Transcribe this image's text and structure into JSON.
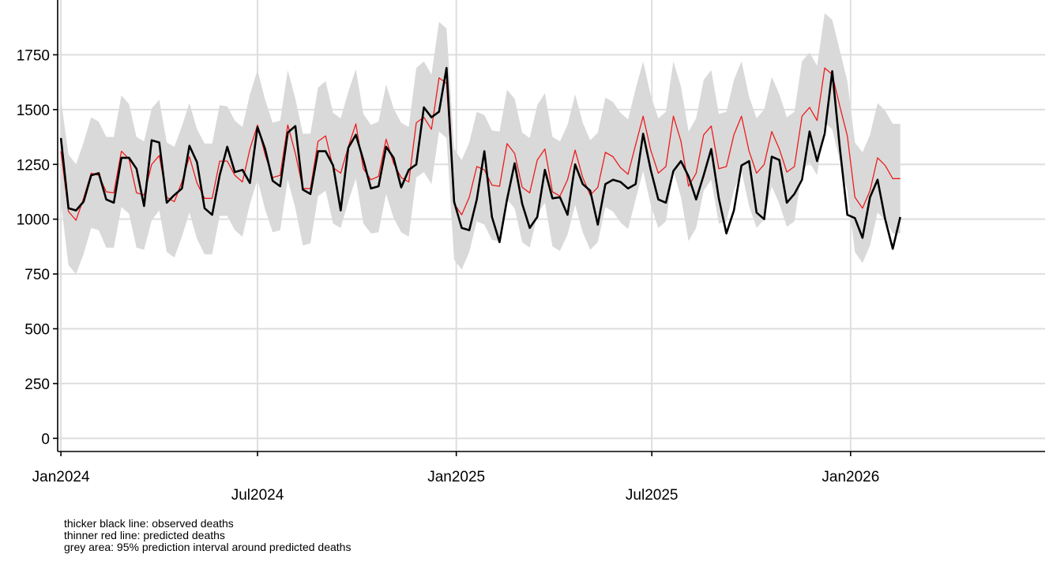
{
  "chart_data": {
    "type": "line",
    "title": "",
    "xlabel": "",
    "ylabel": "",
    "x_unit": "week",
    "x_start": "2024-01-01",
    "x_ticks": [
      {
        "label": "Jan2024",
        "date": "2024-01-01"
      },
      {
        "label": "Jul2024",
        "date": "2024-07-01"
      },
      {
        "label": "Jan2025",
        "date": "2025-01-01"
      },
      {
        "label": "Jul2025",
        "date": "2025-07-01"
      },
      {
        "label": "Jan2026",
        "date": "2026-01-01"
      }
    ],
    "x_range": [
      "2023-12-29",
      "2026-06-30"
    ],
    "y_ticks": [
      0,
      250,
      500,
      750,
      1000,
      1250,
      1500,
      1750
    ],
    "ylim": [
      -60,
      2000
    ],
    "grid": true,
    "legend": "none",
    "series": [
      {
        "color": "#000000",
        "values": [
          1370,
          1050,
          1040,
          1080,
          1200,
          1210,
          1090,
          1075,
          1280,
          1280,
          1230,
          1060,
          1360,
          1350,
          1075,
          1110,
          1140,
          1335,
          1260,
          1050,
          1020,
          1200,
          1330,
          1215,
          1225,
          1165,
          1420,
          1320,
          1175,
          1150,
          1395,
          1425,
          1135,
          1115,
          1310,
          1310,
          1245,
          1040,
          1325,
          1385,
          1270,
          1140,
          1150,
          1330,
          1280,
          1145,
          1225,
          1250,
          1510,
          1465,
          1490,
          1690,
          1080,
          960,
          950,
          1090,
          1310,
          1010,
          895,
          1090,
          1255,
          1070,
          960,
          1010,
          1225,
          1095,
          1100,
          1020,
          1250,
          1160,
          1130,
          975,
          1160,
          1180,
          1170,
          1140,
          1160,
          1390,
          1225,
          1090,
          1075,
          1220,
          1265,
          1195,
          1090,
          1200,
          1320,
          1095,
          935,
          1040,
          1245,
          1265,
          1030,
          1000,
          1285,
          1270,
          1075,
          1115,
          1180,
          1400,
          1265,
          1390,
          1675,
          1325,
          1020,
          1005,
          915,
          1100,
          1180,
          1000,
          865,
          1010
        ]
      },
      {
        "color": "#ee1c1c",
        "values": [
          1310,
          1035,
          995,
          1095,
          1210,
          1200,
          1125,
          1120,
          1310,
          1275,
          1120,
          1110,
          1250,
          1290,
          1100,
          1080,
          1170,
          1285,
          1165,
          1095,
          1095,
          1265,
          1265,
          1200,
          1170,
          1320,
          1430,
          1295,
          1190,
          1200,
          1430,
          1300,
          1140,
          1140,
          1355,
          1380,
          1235,
          1210,
          1330,
          1435,
          1230,
          1180,
          1195,
          1365,
          1255,
          1190,
          1170,
          1440,
          1465,
          1410,
          1645,
          1620,
          1070,
          1020,
          1100,
          1240,
          1225,
          1155,
          1150,
          1345,
          1300,
          1145,
          1120,
          1270,
          1320,
          1125,
          1105,
          1180,
          1315,
          1190,
          1110,
          1145,
          1305,
          1285,
          1235,
          1205,
          1340,
          1470,
          1315,
          1210,
          1240,
          1470,
          1355,
          1150,
          1210,
          1385,
          1425,
          1230,
          1240,
          1385,
          1470,
          1310,
          1210,
          1250,
          1400,
          1320,
          1215,
          1240,
          1470,
          1510,
          1450,
          1690,
          1660,
          1515,
          1380,
          1100,
          1050,
          1130,
          1280,
          1245,
          1185,
          1185
        ]
      }
    ],
    "band": {
      "color": "#d9d9d9",
      "upper": [
        1545,
        1295,
        1250,
        1350,
        1465,
        1445,
        1375,
        1375,
        1565,
        1525,
        1375,
        1355,
        1505,
        1545,
        1350,
        1330,
        1425,
        1530,
        1410,
        1345,
        1345,
        1520,
        1515,
        1450,
        1420,
        1570,
        1680,
        1545,
        1440,
        1450,
        1680,
        1550,
        1390,
        1390,
        1600,
        1630,
        1485,
        1460,
        1580,
        1685,
        1480,
        1430,
        1445,
        1615,
        1505,
        1440,
        1420,
        1690,
        1720,
        1660,
        1900,
        1870,
        1320,
        1270,
        1350,
        1490,
        1475,
        1405,
        1400,
        1590,
        1550,
        1395,
        1370,
        1520,
        1575,
        1375,
        1355,
        1430,
        1570,
        1440,
        1360,
        1395,
        1555,
        1535,
        1485,
        1455,
        1595,
        1720,
        1565,
        1460,
        1490,
        1720,
        1605,
        1400,
        1460,
        1635,
        1680,
        1480,
        1490,
        1635,
        1720,
        1560,
        1460,
        1500,
        1650,
        1570,
        1465,
        1490,
        1720,
        1760,
        1700,
        1940,
        1910,
        1770,
        1630,
        1350,
        1305,
        1385,
        1530,
        1495,
        1435,
        1435
      ],
      "lower": [
        1080,
        790,
        750,
        840,
        960,
        950,
        870,
        870,
        1055,
        1025,
        870,
        860,
        995,
        1040,
        850,
        825,
        920,
        1030,
        910,
        840,
        840,
        1015,
        1015,
        950,
        920,
        1070,
        1180,
        1045,
        940,
        950,
        1180,
        1050,
        880,
        890,
        1105,
        1130,
        980,
        960,
        1080,
        1185,
        980,
        935,
        940,
        1115,
        1005,
        940,
        920,
        1190,
        1215,
        1160,
        1400,
        1370,
        815,
        770,
        850,
        990,
        975,
        905,
        900,
        1090,
        1050,
        895,
        870,
        1020,
        1075,
        875,
        855,
        930,
        1065,
        940,
        860,
        895,
        1055,
        1035,
        985,
        955,
        1090,
        1220,
        1065,
        960,
        990,
        1220,
        1100,
        900,
        960,
        1130,
        1180,
        980,
        990,
        1130,
        1220,
        1060,
        960,
        1000,
        1150,
        1070,
        965,
        990,
        1220,
        1260,
        1200,
        1440,
        1410,
        1265,
        1130,
        850,
        800,
        880,
        1030,
        995,
        935,
        935
      ]
    }
  },
  "notes": [
    "thicker black line: observed deaths",
    "thinner red line: predicted deaths",
    "grey area: 95% prediction interval around predicted deaths"
  ]
}
